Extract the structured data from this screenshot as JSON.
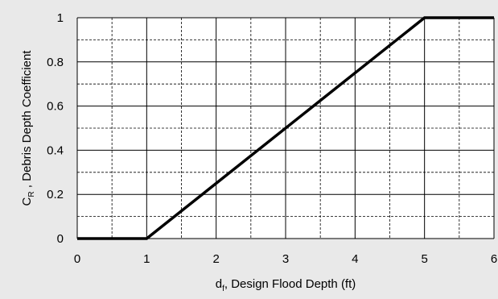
{
  "chart_data": {
    "type": "line",
    "title": "",
    "x_axis": {
      "label_main": "d",
      "label_sub": "f",
      "label_rest": ", Design Flood Depth (ft)",
      "range": [
        0,
        6
      ],
      "major_ticks": [
        0,
        1,
        2,
        3,
        4,
        5,
        6
      ],
      "tick_labels": [
        "0",
        "1",
        "2",
        "3",
        "4",
        "5",
        "6"
      ],
      "minor_gridlines": [
        0.5,
        1.5,
        2.5,
        3.5,
        4.5,
        5.5
      ]
    },
    "y_axis": {
      "label_main": "C",
      "label_sub": "R",
      "label_rest": " , Debris Depth Coefficient",
      "range": [
        0,
        1
      ],
      "major_ticks": [
        0,
        0.2,
        0.4,
        0.6,
        0.8,
        1
      ],
      "tick_labels": [
        "0",
        "0.2",
        "0.4",
        "0.6",
        "0.8",
        "1"
      ],
      "minor_gridlines": [
        0.1,
        0.3,
        0.5,
        0.7,
        0.9
      ]
    },
    "grid": true,
    "series": [
      {
        "color": "#000000",
        "points": [
          {
            "x": 0,
            "y": 0
          },
          {
            "x": 1,
            "y": 0
          },
          {
            "x": 5,
            "y": 1
          },
          {
            "x": 6,
            "y": 1
          }
        ]
      }
    ]
  },
  "colors": {
    "background": "#e9e9e9",
    "plot_background": "#ffffff",
    "line": "#000000"
  }
}
